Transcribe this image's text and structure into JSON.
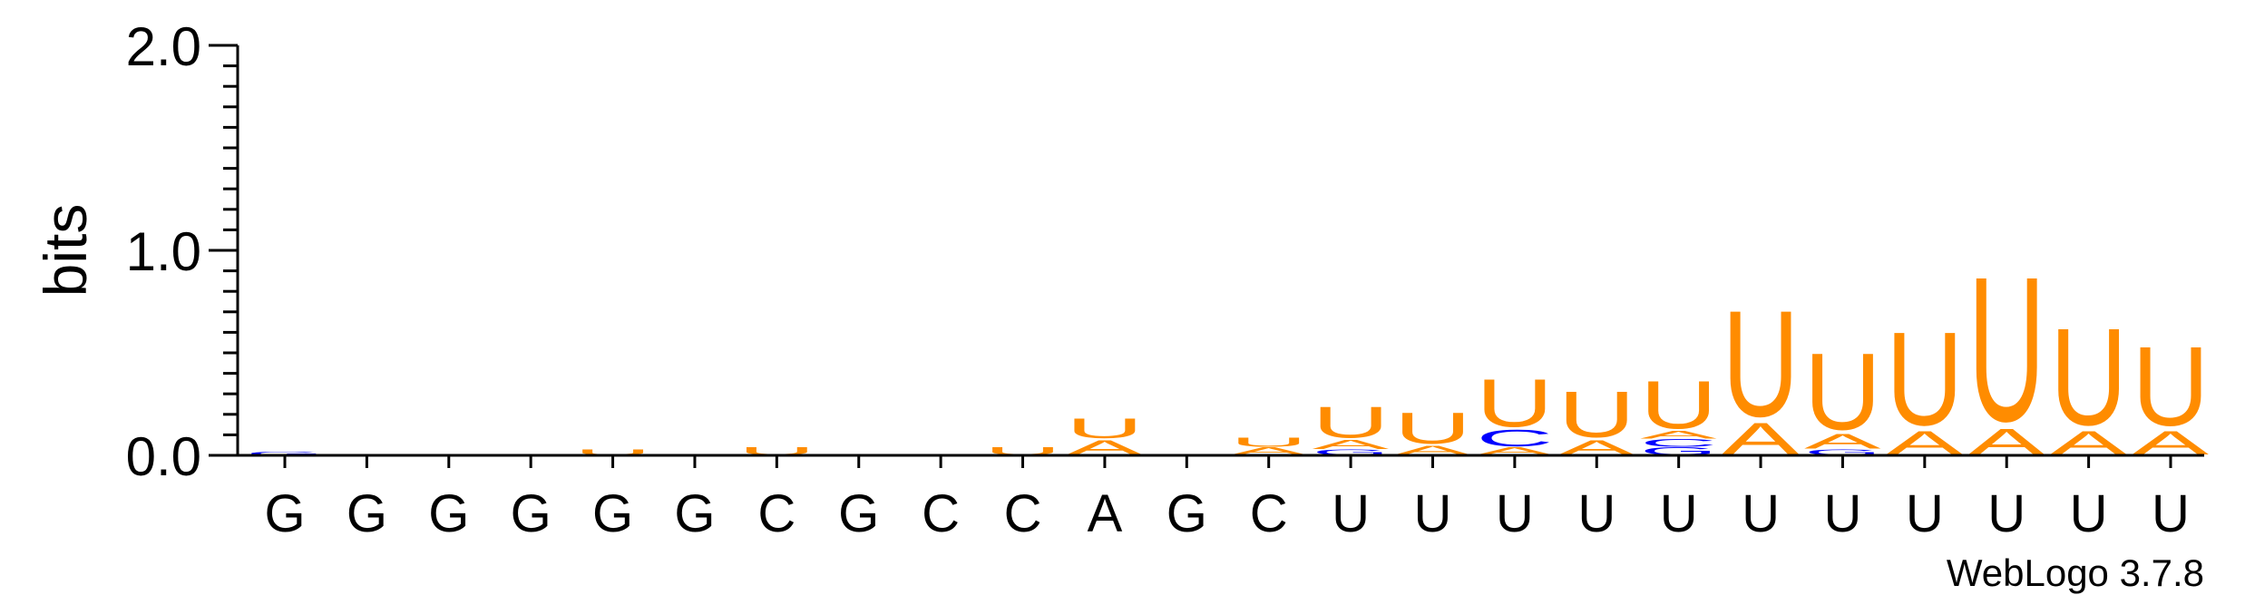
{
  "chart_data": {
    "type": "sequence-logo",
    "ylabel": "bits",
    "ylim": [
      0,
      2
    ],
    "yticks": [
      "0.0",
      "1.0",
      "2.0"
    ],
    "credit": "WebLogo 3.7.8",
    "colors": {
      "A": "#ff8c00",
      "U": "#ff8c00",
      "C": "#0000ff",
      "G": "#0000ff"
    },
    "consensus": [
      "G",
      "G",
      "G",
      "G",
      "G",
      "G",
      "C",
      "G",
      "C",
      "C",
      "A",
      "G",
      "C",
      "U",
      "U",
      "U",
      "U",
      "U",
      "U",
      "U",
      "U",
      "U",
      "U",
      "U"
    ],
    "positions": [
      [
        {
          "l": "G",
          "v": 0.02
        }
      ],
      [],
      [],
      [],
      [
        {
          "l": "U",
          "v": 0.03
        }
      ],
      [],
      [
        {
          "l": "U",
          "v": 0.04
        }
      ],
      [],
      [],
      [
        {
          "l": "U",
          "v": 0.04
        }
      ],
      [
        {
          "l": "A",
          "v": 0.08
        },
        {
          "l": "U",
          "v": 0.11
        }
      ],
      [],
      [
        {
          "l": "A",
          "v": 0.04
        },
        {
          "l": "U",
          "v": 0.05
        }
      ],
      [
        {
          "l": "G",
          "v": 0.03
        },
        {
          "l": "A",
          "v": 0.05
        },
        {
          "l": "U",
          "v": 0.17
        }
      ],
      [
        {
          "l": "A",
          "v": 0.05
        },
        {
          "l": "U",
          "v": 0.17
        }
      ],
      [
        {
          "l": "A",
          "v": 0.04
        },
        {
          "l": "C",
          "v": 0.09
        },
        {
          "l": "U",
          "v": 0.26
        }
      ],
      [
        {
          "l": "A",
          "v": 0.08
        },
        {
          "l": "U",
          "v": 0.25
        }
      ],
      [
        {
          "l": "G",
          "v": 0.04
        },
        {
          "l": "C",
          "v": 0.04
        },
        {
          "l": "A",
          "v": 0.04
        },
        {
          "l": "U",
          "v": 0.26
        }
      ],
      [
        {
          "l": "A",
          "v": 0.17
        },
        {
          "l": "U",
          "v": 0.58
        }
      ],
      [
        {
          "l": "G",
          "v": 0.03
        },
        {
          "l": "A",
          "v": 0.08
        },
        {
          "l": "U",
          "v": 0.42
        }
      ],
      [
        {
          "l": "A",
          "v": 0.13
        },
        {
          "l": "U",
          "v": 0.51
        }
      ],
      [
        {
          "l": "A",
          "v": 0.14
        },
        {
          "l": "U",
          "v": 0.79
        }
      ],
      [
        {
          "l": "A",
          "v": 0.13
        },
        {
          "l": "U",
          "v": 0.53
        }
      ],
      [
        {
          "l": "A",
          "v": 0.13
        },
        {
          "l": "U",
          "v": 0.43
        }
      ]
    ]
  }
}
